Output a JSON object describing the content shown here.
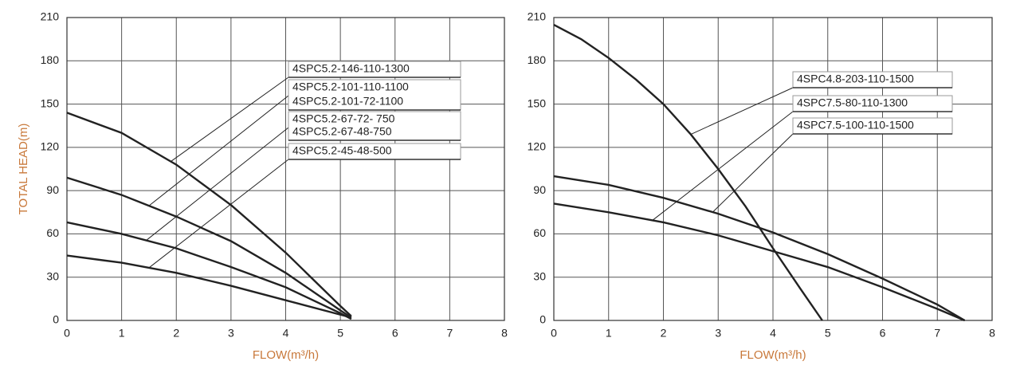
{
  "chart_data": [
    {
      "type": "line",
      "ylabel": "TOTAL HEAD(m)",
      "xlabel": "FLOW(m³/h)",
      "xlim": [
        0,
        8
      ],
      "ylim": [
        0,
        210
      ],
      "xticks": [
        0,
        1,
        2,
        3,
        4,
        5,
        6,
        7,
        8
      ],
      "yticks": [
        0,
        30,
        60,
        90,
        120,
        150,
        180,
        210
      ],
      "grid": true,
      "color": "#222",
      "series": [
        {
          "labels": [
            "4SPC5.2-146-110-1300"
          ],
          "x": [
            0,
            1,
            2,
            3,
            4,
            5,
            5.2
          ],
          "values": [
            144,
            130,
            108,
            80,
            47,
            10,
            3
          ]
        },
        {
          "labels": [
            "4SPC5.2-101-110-1100",
            "4SPC5.2-101-72-1100"
          ],
          "x": [
            0,
            1,
            2,
            3,
            4,
            5,
            5.2
          ],
          "values": [
            99,
            87,
            72,
            55,
            33,
            7,
            2
          ]
        },
        {
          "labels": [
            "4SPC5.2-67-72- 750",
            "4SPC5.2-67-48-750"
          ],
          "x": [
            0,
            1,
            2,
            3,
            4,
            5,
            5.2
          ],
          "values": [
            68,
            60,
            50,
            37,
            23,
            5,
            1
          ]
        },
        {
          "labels": [
            "4SPC5.2-45-48-500"
          ],
          "x": [
            0,
            1,
            2,
            3,
            4,
            5,
            5.2
          ],
          "values": [
            45,
            40,
            33,
            24,
            14,
            4,
            2
          ]
        }
      ]
    },
    {
      "type": "line",
      "xlabel": "FLOW(m³/h)",
      "xlim": [
        0,
        8
      ],
      "ylim": [
        0,
        210
      ],
      "xticks": [
        0,
        1,
        2,
        3,
        4,
        5,
        6,
        7,
        8
      ],
      "yticks": [
        0,
        30,
        60,
        90,
        120,
        150,
        180,
        210
      ],
      "grid": true,
      "color": "#222",
      "series": [
        {
          "labels": [
            "4SPC4.8-203-110-1500"
          ],
          "x": [
            0,
            0.5,
            1,
            1.5,
            2,
            2.5,
            3,
            3.5,
            4,
            4.5,
            4.9
          ],
          "values": [
            205,
            195,
            182,
            167,
            150,
            129,
            105,
            79,
            50,
            22,
            0
          ]
        },
        {
          "labels": [
            "4SPC7.5-80-110-1300"
          ],
          "x": [
            0,
            1,
            2,
            3,
            4,
            5,
            6,
            7,
            7.5
          ],
          "values": [
            81,
            75,
            68,
            59,
            48,
            37,
            23,
            8,
            0
          ]
        },
        {
          "labels": [
            "4SPC7.5-100-110-1500"
          ],
          "x": [
            0,
            1,
            2,
            3,
            4,
            5,
            6,
            7,
            7.5
          ],
          "values": [
            100,
            94,
            85,
            74,
            61,
            46,
            29,
            11,
            0
          ]
        }
      ]
    }
  ]
}
